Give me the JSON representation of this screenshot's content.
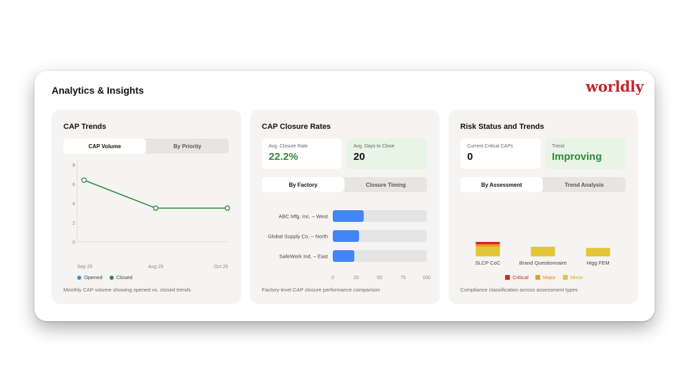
{
  "header": {
    "title": "Analytics & Insights",
    "brand": "worldly"
  },
  "colors": {
    "accent_green": "#2d8a3a",
    "bar_blue": "#4285f4",
    "critical": "#d9261c",
    "major": "#f29a1f",
    "minor": "#e3c53a"
  },
  "cap_trends": {
    "title": "CAP Trends",
    "tabs": [
      "CAP Volume",
      "By Priority"
    ],
    "active_tab": 0,
    "legend": [
      "Opened",
      "Closed"
    ],
    "caption": "Monthly CAP volume showing opened vs. closed trends"
  },
  "closure": {
    "title": "CAP Closure Rates",
    "avg_rate_label": "Avg. Closure Rate",
    "avg_rate_value": "22.2%",
    "avg_days_label": "Avg. Days to Close",
    "avg_days_value": "20",
    "tabs": [
      "By Factory",
      "Closure Timing"
    ],
    "active_tab": 0,
    "caption": "Factory-level CAP closure performance comparison"
  },
  "risk": {
    "title": "Risk Status and Trends",
    "critical_label": "Current Critical CAPs",
    "critical_value": "0",
    "trend_label": "Trend",
    "trend_value": "Improving",
    "tabs": [
      "By Assessment",
      "Trend Analysis"
    ],
    "active_tab": 0,
    "legend": [
      "Critical",
      "Major",
      "Minor"
    ],
    "caption": "Compliance classification across assessment types"
  },
  "chart_data": [
    {
      "type": "line",
      "x": [
        "Sep 25",
        "Aug 25",
        "Oct 25"
      ],
      "series": [
        {
          "name": "Opened",
          "values": [
            null,
            null,
            null
          ]
        },
        {
          "name": "Closed",
          "values": [
            6.4,
            3.5,
            3.5
          ]
        }
      ],
      "yticks": [
        0,
        2,
        4,
        6,
        8
      ],
      "ylim": [
        0,
        8
      ],
      "grid": false,
      "legend_position": "bottom-left"
    },
    {
      "type": "bar",
      "orientation": "horizontal",
      "categories": [
        "ABC Mfg. Inc. – West",
        "Global Supply Co. – North",
        "SafeWork Ind. – East"
      ],
      "values": [
        33,
        28,
        23
      ],
      "xticks": [
        0,
        25,
        50,
        75,
        100
      ],
      "xlim": [
        0,
        100
      ]
    },
    {
      "type": "bar",
      "stacked": true,
      "categories": [
        "SLCP CoC",
        "Brand Questionnaire",
        "Higg FEM"
      ],
      "series": [
        {
          "name": "Critical",
          "values": [
            1,
            0,
            0
          ]
        },
        {
          "name": "Major",
          "values": [
            1,
            0,
            0
          ]
        },
        {
          "name": "Minor",
          "values": [
            4,
            4,
            3.5
          ]
        }
      ],
      "legend_position": "bottom-center"
    }
  ]
}
